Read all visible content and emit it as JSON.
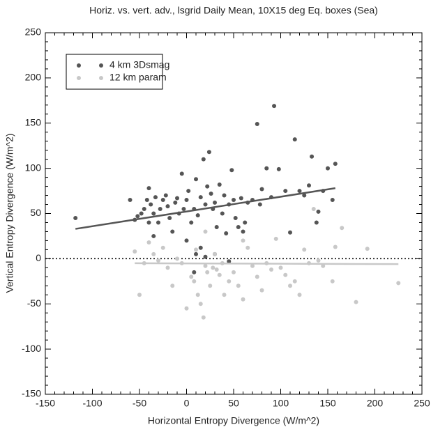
{
  "chart_data": {
    "type": "scatter",
    "title": "Horiz. vs. vert. adv., lsgrid Daily Mean, 10X15 deg Eq. boxes (Sea)",
    "x_label": "Horizontal Entropy Divergence (W/m^2)",
    "y_label": "Vertical Entropy Divergence (W/m^2)",
    "xlim": [
      -150,
      250
    ],
    "ylim": [
      -150,
      250
    ],
    "xticks": [
      -150,
      -100,
      -50,
      0,
      50,
      100,
      150,
      200,
      250
    ],
    "yticks": [
      -150,
      -100,
      -50,
      0,
      50,
      100,
      150,
      200,
      250
    ],
    "reference_line_y": 0,
    "legend": "top-left",
    "series": [
      {
        "name": "4 km 3Dsmag",
        "color": "#555555",
        "x": [
          -118,
          -60,
          -55,
          -52,
          -48,
          -45,
          -42,
          -40,
          -38,
          -35,
          -33,
          -30,
          -28,
          -25,
          -22,
          -20,
          -18,
          -15,
          -12,
          -10,
          -8,
          -5,
          -3,
          0,
          2,
          5,
          8,
          10,
          12,
          15,
          18,
          20,
          22,
          24,
          26,
          28,
          30,
          32,
          35,
          38,
          40,
          42,
          45,
          48,
          50,
          52,
          55,
          58,
          60,
          62,
          65,
          70,
          75,
          78,
          80,
          85,
          90,
          93,
          98,
          105,
          110,
          115,
          120,
          125,
          130,
          133,
          138,
          140,
          145,
          150,
          155,
          158,
          -40,
          -35,
          0,
          10,
          20,
          30,
          45,
          8,
          15
        ],
        "y": [
          45,
          65,
          43,
          47,
          50,
          55,
          65,
          78,
          60,
          50,
          68,
          40,
          55,
          65,
          70,
          58,
          45,
          30,
          62,
          67,
          50,
          94,
          55,
          65,
          75,
          40,
          55,
          88,
          48,
          68,
          110,
          60,
          80,
          118,
          72,
          55,
          62,
          35,
          82,
          50,
          70,
          28,
          60,
          98,
          65,
          45,
          35,
          67,
          30,
          40,
          62,
          65,
          149,
          60,
          77,
          100,
          68,
          169,
          99,
          75,
          29,
          132,
          75,
          70,
          81,
          113,
          40,
          52,
          75,
          100,
          65,
          105,
          40,
          25,
          20,
          5,
          2,
          5,
          -3,
          -15,
          12
        ],
        "trend": {
          "x": [
            -118,
            158
          ],
          "y": [
            33,
            78
          ]
        }
      },
      {
        "name": "12 km param",
        "color": "#c8c8c8",
        "x": [
          -55,
          -50,
          -45,
          -40,
          -35,
          -30,
          -25,
          -20,
          -15,
          -10,
          -5,
          0,
          5,
          8,
          10,
          12,
          15,
          18,
          20,
          22,
          25,
          28,
          30,
          32,
          35,
          38,
          40,
          45,
          50,
          55,
          60,
          65,
          70,
          75,
          80,
          85,
          90,
          95,
          100,
          105,
          110,
          115,
          120,
          125,
          130,
          135,
          140,
          145,
          155,
          158,
          165,
          180,
          192,
          225,
          60,
          20
        ],
        "y": [
          8,
          -40,
          -5,
          18,
          5,
          -2,
          12,
          -10,
          -30,
          0,
          -5,
          -55,
          -20,
          -25,
          10,
          -40,
          -50,
          -65,
          -8,
          -15,
          -30,
          -10,
          5,
          -12,
          -18,
          -5,
          -40,
          -25,
          -15,
          -30,
          -45,
          12,
          -8,
          -20,
          -35,
          -5,
          -12,
          22,
          -10,
          -18,
          -30,
          -25,
          -40,
          10,
          -5,
          55,
          -2,
          -8,
          -25,
          13,
          34,
          -48,
          11,
          -27,
          20,
          30
        ],
        "trend": {
          "x": [
            -55,
            225
          ],
          "y": [
            -5,
            -6
          ]
        }
      }
    ]
  }
}
